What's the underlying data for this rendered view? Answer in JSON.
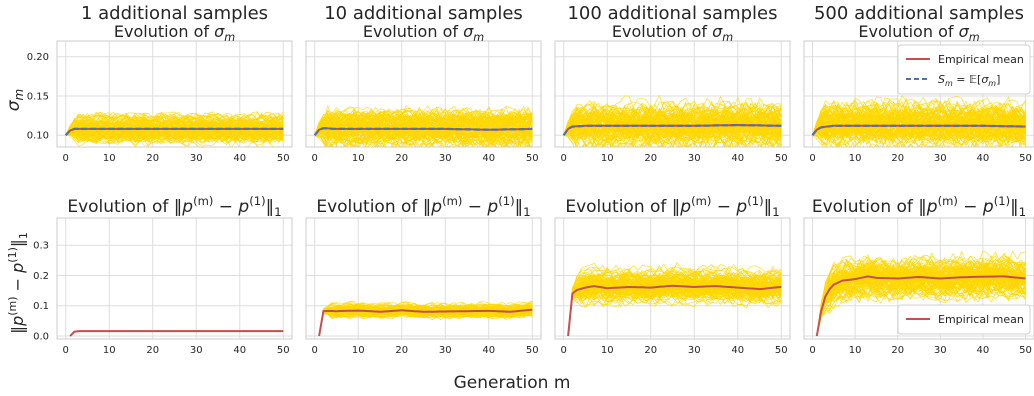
{
  "figure": {
    "xlabel": "Generation m",
    "row1_title": "Evolution of σm",
    "row2_title": "Evolution of ‖p(m) − p(1)‖1"
  },
  "colors": {
    "trajectory": "#ffd700",
    "mean": "#c44e52",
    "expectation": "#4c72b0",
    "grid": "#dddddd",
    "frame": "#cccccc"
  },
  "chart_data": [
    {
      "type": "line",
      "panel": "row1-col1",
      "supertitle": "1 additional samples",
      "title": "Evolution of σm",
      "ylabel": "σm",
      "xlim": [
        -2,
        52
      ],
      "ylim": [
        0.085,
        0.22
      ],
      "xticks": [
        0,
        10,
        20,
        30,
        40,
        50
      ],
      "yticks": [
        0.1,
        0.15,
        0.2
      ],
      "grid": true,
      "legend": null,
      "trajectories": {
        "count": 100,
        "center": 0.108,
        "spread": 0.014
      },
      "series": [
        {
          "name": "",
          "style": "solid",
          "color": "#c44e52",
          "x": [
            0,
            1,
            2,
            5,
            10,
            20,
            30,
            40,
            50
          ],
          "y": [
            0.1,
            0.106,
            0.108,
            0.108,
            0.108,
            0.108,
            0.108,
            0.108,
            0.108
          ]
        },
        {
          "name": "",
          "style": "dashed",
          "color": "#4c72b0",
          "x": [
            0,
            1,
            2,
            5,
            10,
            20,
            30,
            40,
            50
          ],
          "y": [
            0.1,
            0.106,
            0.108,
            0.108,
            0.108,
            0.108,
            0.108,
            0.108,
            0.108
          ]
        }
      ]
    },
    {
      "type": "line",
      "panel": "row1-col2",
      "supertitle": "10 additional samples",
      "title": "Evolution of σm",
      "ylabel": "",
      "xlim": [
        -2,
        52
      ],
      "ylim": [
        0.085,
        0.22
      ],
      "xticks": [
        0,
        10,
        20,
        30,
        40,
        50
      ],
      "yticks": [
        0.1,
        0.15,
        0.2
      ],
      "grid": true,
      "legend": null,
      "trajectories": {
        "count": 100,
        "center": 0.108,
        "spread": 0.018
      },
      "series": [
        {
          "name": "",
          "style": "solid",
          "color": "#c44e52",
          "x": [
            0,
            1,
            2,
            5,
            10,
            20,
            30,
            40,
            50
          ],
          "y": [
            0.1,
            0.107,
            0.109,
            0.108,
            0.108,
            0.108,
            0.108,
            0.107,
            0.108
          ]
        },
        {
          "name": "",
          "style": "dashed",
          "color": "#4c72b0",
          "x": [
            0,
            1,
            2,
            5,
            10,
            20,
            30,
            40,
            50
          ],
          "y": [
            0.1,
            0.107,
            0.109,
            0.108,
            0.108,
            0.108,
            0.108,
            0.107,
            0.108
          ]
        }
      ]
    },
    {
      "type": "line",
      "panel": "row1-col3",
      "supertitle": "100 additional samples",
      "title": "Evolution of σm",
      "ylabel": "",
      "xlim": [
        -2,
        52
      ],
      "ylim": [
        0.085,
        0.22
      ],
      "xticks": [
        0,
        10,
        20,
        30,
        40,
        50
      ],
      "yticks": [
        0.1,
        0.15,
        0.2
      ],
      "grid": true,
      "legend": null,
      "trajectories": {
        "count": 100,
        "center": 0.112,
        "spread": 0.022
      },
      "series": [
        {
          "name": "",
          "style": "solid",
          "color": "#c44e52",
          "x": [
            0,
            1,
            2,
            5,
            10,
            20,
            30,
            40,
            50
          ],
          "y": [
            0.1,
            0.108,
            0.111,
            0.112,
            0.112,
            0.112,
            0.112,
            0.113,
            0.112
          ]
        },
        {
          "name": "",
          "style": "dashed",
          "color": "#4c72b0",
          "x": [
            0,
            1,
            2,
            5,
            10,
            20,
            30,
            40,
            50
          ],
          "y": [
            0.1,
            0.108,
            0.111,
            0.112,
            0.112,
            0.112,
            0.112,
            0.113,
            0.112
          ]
        }
      ]
    },
    {
      "type": "line",
      "panel": "row1-col4",
      "supertitle": "500 additional samples",
      "title": "Evolution of σm",
      "ylabel": "",
      "xlim": [
        -2,
        52
      ],
      "ylim": [
        0.085,
        0.22
      ],
      "xticks": [
        0,
        10,
        20,
        30,
        40,
        50
      ],
      "yticks": [
        0.1,
        0.15,
        0.2
      ],
      "grid": true,
      "legend": "top-right",
      "legend_entries": [
        {
          "label": "Empirical mean",
          "style": "solid",
          "color": "#c44e52"
        },
        {
          "label": "Sm = E[σm]",
          "style": "dashed",
          "color": "#4c72b0"
        }
      ],
      "trajectories": {
        "count": 100,
        "center": 0.112,
        "spread": 0.022
      },
      "series": [
        {
          "name": "Empirical mean",
          "style": "solid",
          "color": "#c44e52",
          "x": [
            0,
            1,
            2,
            5,
            10,
            20,
            30,
            40,
            50
          ],
          "y": [
            0.1,
            0.107,
            0.11,
            0.112,
            0.112,
            0.112,
            0.112,
            0.112,
            0.111
          ]
        },
        {
          "name": "Sm = E[σm]",
          "style": "dashed",
          "color": "#4c72b0",
          "x": [
            0,
            1,
            2,
            5,
            10,
            20,
            30,
            40,
            50
          ],
          "y": [
            0.1,
            0.107,
            0.11,
            0.112,
            0.112,
            0.112,
            0.112,
            0.112,
            0.111
          ]
        }
      ]
    },
    {
      "type": "line",
      "panel": "row2-col1",
      "title": "Evolution of ‖p(m) − p(1)‖1",
      "ylabel": "‖p(m) − p(1)‖1",
      "xlim": [
        -2,
        52
      ],
      "ylim": [
        -0.01,
        0.39
      ],
      "xticks": [
        0,
        10,
        20,
        30,
        40,
        50
      ],
      "yticks": [
        0.0,
        0.1,
        0.2,
        0.3
      ],
      "grid": true,
      "legend": null,
      "trajectories": {
        "count": 100,
        "center": 0.016,
        "spread": 0.001
      },
      "series": [
        {
          "name": "",
          "style": "solid",
          "color": "#c44e52",
          "x": [
            1,
            2,
            3,
            5,
            10,
            20,
            30,
            40,
            50
          ],
          "y": [
            0.0,
            0.014,
            0.016,
            0.016,
            0.016,
            0.016,
            0.016,
            0.016,
            0.016
          ]
        }
      ]
    },
    {
      "type": "line",
      "panel": "row2-col2",
      "title": "Evolution of ‖p(m) − p(1)‖1",
      "ylabel": "",
      "xlim": [
        -2,
        52
      ],
      "ylim": [
        -0.01,
        0.39
      ],
      "xticks": [
        0,
        10,
        20,
        30,
        40,
        50
      ],
      "yticks": [
        0.0,
        0.1,
        0.2,
        0.3
      ],
      "grid": true,
      "legend": null,
      "trajectories": {
        "count": 100,
        "center": 0.083,
        "spread": 0.016
      },
      "series": [
        {
          "name": "",
          "style": "solid",
          "color": "#c44e52",
          "x": [
            1,
            2,
            3,
            5,
            10,
            15,
            20,
            25,
            30,
            35,
            40,
            45,
            50
          ],
          "y": [
            0.0,
            0.082,
            0.083,
            0.082,
            0.084,
            0.08,
            0.085,
            0.08,
            0.081,
            0.082,
            0.083,
            0.08,
            0.087
          ]
        }
      ]
    },
    {
      "type": "line",
      "panel": "row2-col3",
      "title": "Evolution of ‖p(m) − p(1)‖1",
      "ylabel": "",
      "xlim": [
        -2,
        52
      ],
      "ylim": [
        -0.01,
        0.39
      ],
      "xticks": [
        0,
        10,
        20,
        30,
        40,
        50
      ],
      "yticks": [
        0.0,
        0.1,
        0.2,
        0.3
      ],
      "grid": true,
      "legend": null,
      "trajectories": {
        "count": 100,
        "center": 0.163,
        "spread": 0.04
      },
      "series": [
        {
          "name": "",
          "style": "solid",
          "color": "#c44e52",
          "x": [
            1,
            2,
            3,
            5,
            7,
            10,
            15,
            20,
            25,
            30,
            35,
            40,
            45,
            50
          ],
          "y": [
            0.0,
            0.14,
            0.152,
            0.16,
            0.165,
            0.158,
            0.162,
            0.16,
            0.166,
            0.162,
            0.165,
            0.16,
            0.155,
            0.162
          ]
        }
      ]
    },
    {
      "type": "line",
      "panel": "row2-col4",
      "title": "Evolution of ‖p(m) − p(1)‖1",
      "ylabel": "",
      "xlim": [
        -2,
        52
      ],
      "ylim": [
        -0.01,
        0.39
      ],
      "xticks": [
        0,
        10,
        20,
        30,
        40,
        50
      ],
      "yticks": [
        0.0,
        0.1,
        0.2,
        0.3
      ],
      "grid": true,
      "legend": "bottom-right",
      "legend_entries": [
        {
          "label": "Empirical mean",
          "style": "solid",
          "color": "#c44e52"
        }
      ],
      "trajectories": {
        "count": 100,
        "center": 0.192,
        "spread": 0.05
      },
      "series": [
        {
          "name": "Empirical mean",
          "style": "solid",
          "color": "#c44e52",
          "x": [
            1,
            2,
            3,
            4,
            5,
            7,
            10,
            13,
            15,
            20,
            25,
            30,
            35,
            40,
            45,
            48,
            50
          ],
          "y": [
            0.0,
            0.08,
            0.13,
            0.155,
            0.17,
            0.183,
            0.188,
            0.197,
            0.192,
            0.19,
            0.195,
            0.19,
            0.194,
            0.196,
            0.197,
            0.193,
            0.19
          ]
        }
      ]
    }
  ]
}
